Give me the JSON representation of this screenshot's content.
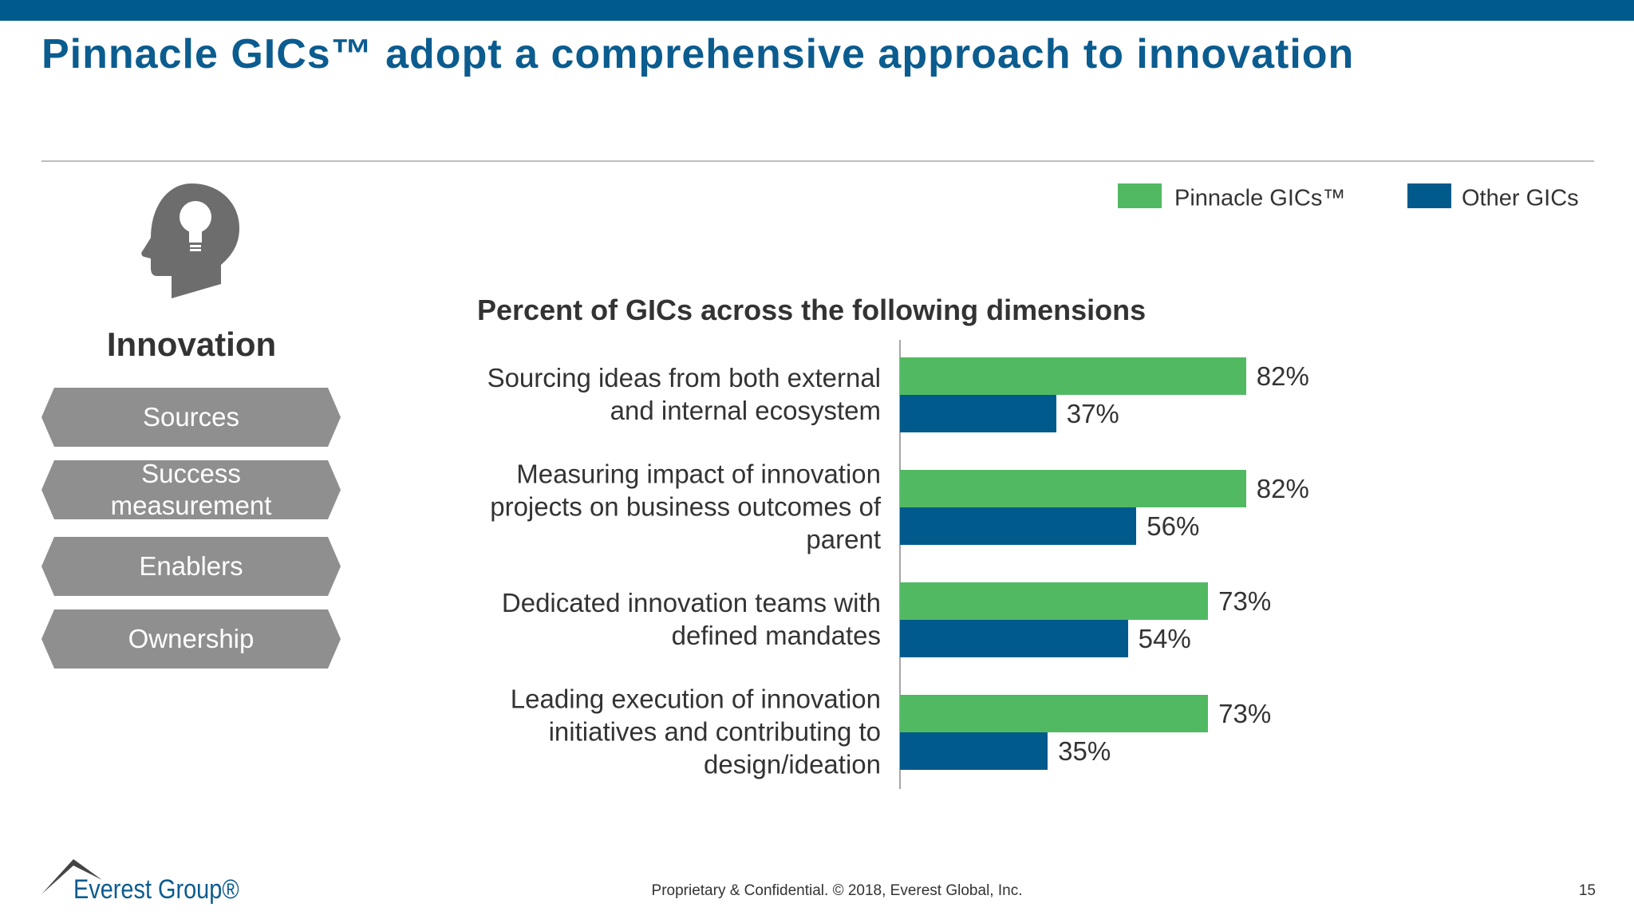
{
  "header": {
    "title": "Pinnacle GICs™ adopt a comprehensive approach to innovation"
  },
  "sidebar": {
    "heading": "Innovation",
    "items": [
      "Sources",
      "Success measurement",
      "Enablers",
      "Ownership"
    ]
  },
  "chart_data": {
    "type": "bar",
    "orientation": "horizontal",
    "title": "Percent of GICs across the following dimensions",
    "categories": [
      "Sourcing ideas from both external and internal ecosystem",
      "Measuring impact of innovation projects on business outcomes of parent",
      "Dedicated innovation teams with defined mandates",
      "Leading execution of innovation initiatives and contributing to design/ideation"
    ],
    "series": [
      {
        "name": "Pinnacle GICs™",
        "color": "#52b963",
        "values": [
          82,
          82,
          73,
          73
        ],
        "value_labels": [
          "82%",
          "82%",
          "73%",
          "73%"
        ]
      },
      {
        "name": "Other GICs",
        "color": "#005a8c",
        "values": [
          37,
          56,
          54,
          35
        ],
        "value_labels": [
          "37%",
          "56%",
          "54%",
          "35%"
        ]
      }
    ],
    "legend": "top-right"
  },
  "footer": {
    "logo": "Everest Group®",
    "text": "Proprietary & Confidential. © 2018, Everest Global, Inc.",
    "page": "15"
  }
}
